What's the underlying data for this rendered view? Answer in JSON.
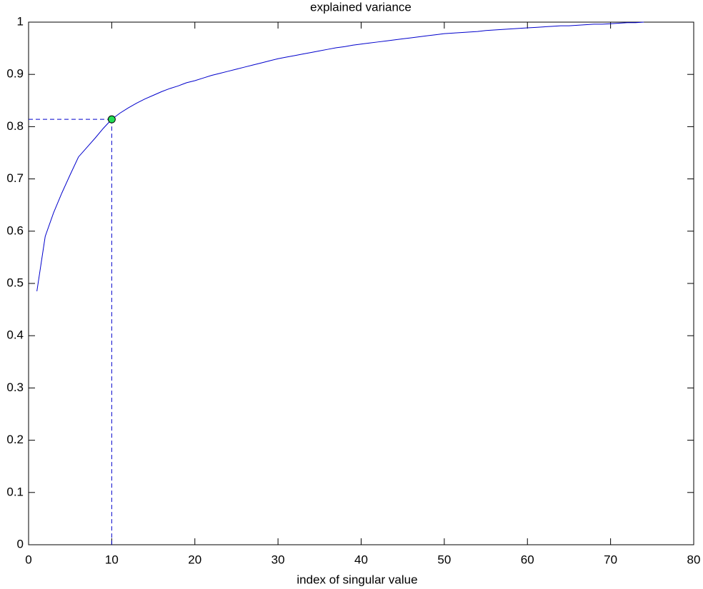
{
  "chart_data": {
    "type": "line",
    "title": "explained variance",
    "xlabel": "index of singular value",
    "x": [
      1,
      2,
      3,
      4,
      5,
      6,
      7,
      8,
      9,
      10,
      11,
      12,
      13,
      14,
      15,
      16,
      17,
      18,
      19,
      20,
      21,
      22,
      23,
      24,
      25,
      26,
      27,
      28,
      29,
      30,
      31,
      32,
      33,
      34,
      35,
      36,
      37,
      38,
      39,
      40,
      41,
      42,
      43,
      44,
      45,
      46,
      47,
      48,
      49,
      50,
      51,
      52,
      53,
      54,
      55,
      56,
      57,
      58,
      59,
      60,
      61,
      62,
      63,
      64,
      65,
      66,
      67,
      68,
      69,
      70,
      71,
      72,
      73,
      74
    ],
    "values": [
      0.485,
      0.59,
      0.635,
      0.673,
      0.708,
      0.742,
      0.76,
      0.778,
      0.797,
      0.814,
      0.826,
      0.836,
      0.845,
      0.853,
      0.86,
      0.867,
      0.873,
      0.878,
      0.884,
      0.888,
      0.893,
      0.898,
      0.902,
      0.906,
      0.91,
      0.914,
      0.918,
      0.922,
      0.926,
      0.93,
      0.933,
      0.936,
      0.939,
      0.942,
      0.945,
      0.948,
      0.951,
      0.953,
      0.956,
      0.958,
      0.96,
      0.962,
      0.964,
      0.966,
      0.968,
      0.97,
      0.972,
      0.974,
      0.976,
      0.978,
      0.979,
      0.98,
      0.981,
      0.982,
      0.984,
      0.985,
      0.986,
      0.987,
      0.988,
      0.989,
      0.99,
      0.991,
      0.992,
      0.993,
      0.993,
      0.994,
      0.995,
      0.996,
      0.996,
      0.997,
      0.998,
      0.999,
      0.999,
      1.0
    ],
    "color": "#0000cc",
    "highlight": {
      "x": 10,
      "y": 0.814,
      "color": "#22dd55"
    },
    "xlim": [
      0,
      80
    ],
    "xticks": [
      0,
      10,
      20,
      30,
      40,
      50,
      60,
      70,
      80
    ],
    "ylim": [
      0,
      1
    ],
    "yticks": [
      0,
      0.1,
      0.2,
      0.3,
      0.4,
      0.5,
      0.6,
      0.7,
      0.8,
      0.9,
      1
    ]
  }
}
